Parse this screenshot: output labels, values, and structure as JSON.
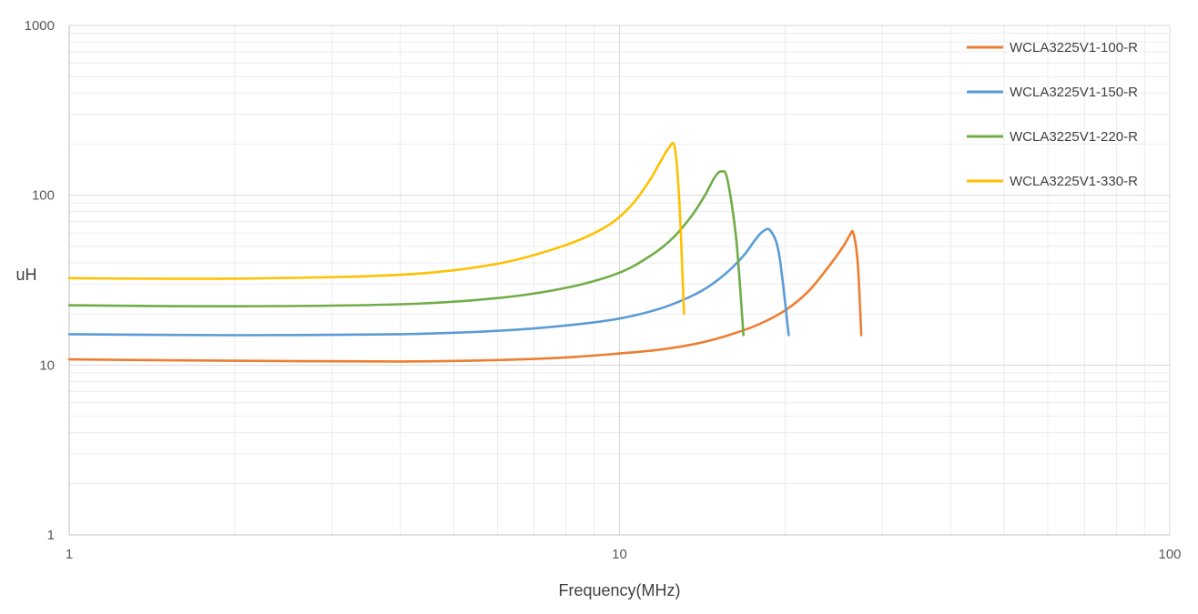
{
  "chart_data": {
    "type": "line",
    "title": "",
    "xlabel": "Frequency(MHz)",
    "ylabel": "uH",
    "xscale": "log",
    "yscale": "log",
    "xlim": [
      1,
      100
    ],
    "ylim": [
      1,
      1000
    ],
    "x_ticks": [
      {
        "value": 1,
        "label": "1"
      },
      {
        "value": 10,
        "label": "10"
      },
      {
        "value": 100,
        "label": "100"
      }
    ],
    "y_ticks": [
      {
        "value": 1,
        "label": "1"
      },
      {
        "value": 10,
        "label": "10"
      },
      {
        "value": 100,
        "label": "100"
      },
      {
        "value": 1000,
        "label": "1000"
      }
    ],
    "grid": true,
    "legend_position": "top-right",
    "series": [
      {
        "name": "WCLA3225V1-100-R",
        "color": "#ED7D31",
        "x": [
          1,
          2,
          4,
          6,
          8,
          10,
          12,
          14,
          16,
          18,
          20,
          22,
          24,
          25.5,
          26.2,
          26.6,
          27.1,
          27.5
        ],
        "y": [
          10.8,
          10.6,
          10.5,
          10.7,
          11.1,
          11.7,
          12.4,
          13.5,
          15.2,
          17.5,
          21,
          27,
          38,
          50,
          58,
          60,
          40,
          15
        ]
      },
      {
        "name": "WCLA3225V1-150-R",
        "color": "#5B9BD5",
        "x": [
          1,
          2,
          4,
          6,
          8,
          10,
          12,
          14,
          15.5,
          16.8,
          17.6,
          18.2,
          18.8,
          19.5,
          20.3
        ],
        "y": [
          15.2,
          15.0,
          15.2,
          15.9,
          17.1,
          18.8,
          21.8,
          27,
          34,
          44,
          54,
          61,
          62,
          45,
          15
        ]
      },
      {
        "name": "WCLA3225V1-220-R",
        "color": "#70AD47",
        "x": [
          1,
          2,
          4,
          6,
          8,
          10,
          11.5,
          12.5,
          13.5,
          14.3,
          14.9,
          15.3,
          15.7,
          16.3,
          16.8
        ],
        "y": [
          22.5,
          22.2,
          22.8,
          24.8,
          28.5,
          35,
          45,
          56,
          75,
          100,
          128,
          138,
          125,
          55,
          15
        ]
      },
      {
        "name": "WCLA3225V1-330-R",
        "color": "#FFC000",
        "x": [
          1,
          2,
          4,
          6,
          8,
          9.5,
          10.5,
          11.3,
          11.9,
          12.3,
          12.6,
          12.85,
          13.1
        ],
        "y": [
          32.5,
          32.3,
          34,
          39.5,
          51,
          66,
          87,
          120,
          160,
          190,
          192,
          90,
          20
        ]
      }
    ]
  }
}
